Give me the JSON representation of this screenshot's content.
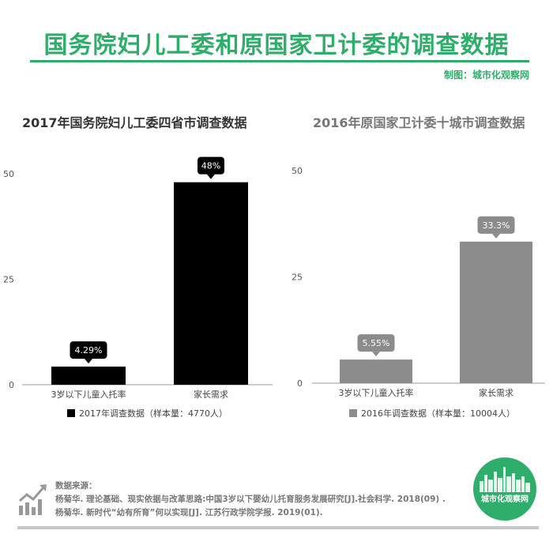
{
  "header": {
    "title": "国务院妇儿工委和原国家卫计委的调查数据",
    "credit": "制图：城市化观察网"
  },
  "colors": {
    "accent": "#2fae6b",
    "series_2017": "#000000",
    "series_2016": "#8c8c8c"
  },
  "chart_data": [
    {
      "type": "bar",
      "title": "2017年国务院妇儿工委四省市调查数据",
      "categories": [
        "3岁以下儿童入托率",
        "家长需求"
      ],
      "series": [
        {
          "name": "2017年调查数据（样本量：4770人）",
          "values": [
            4.29,
            48
          ]
        }
      ],
      "value_labels": [
        "4.29%",
        "48%"
      ],
      "yticks": [
        "0",
        "25",
        "50"
      ],
      "ylim": [
        0,
        50
      ],
      "legend": "bottom"
    },
    {
      "type": "bar",
      "title": "2016年原国家卫计委十城市调查数据",
      "categories": [
        "3岁以下儿童入托率",
        "家长需求"
      ],
      "series": [
        {
          "name": "2016年调查数据（样本量：10004人）",
          "values": [
            5.55,
            33.3
          ]
        }
      ],
      "value_labels": [
        "5.55%",
        "33.3%"
      ],
      "yticks": [
        "0",
        "25",
        "50"
      ],
      "ylim": [
        0,
        50
      ],
      "legend": "bottom"
    }
  ],
  "sources": {
    "heading": "数据来源：",
    "lines": [
      "杨菊华. 理论基础、现实依据与改革思路:中国3岁以下婴幼儿托育服务发展研究[J].社会科学. 2018(09) .",
      "杨菊华. 新时代“幼有所育”何以实现[J]. 江苏行政学院学报. 2019(01)."
    ]
  },
  "logo": {
    "text": "城市化观察网"
  }
}
